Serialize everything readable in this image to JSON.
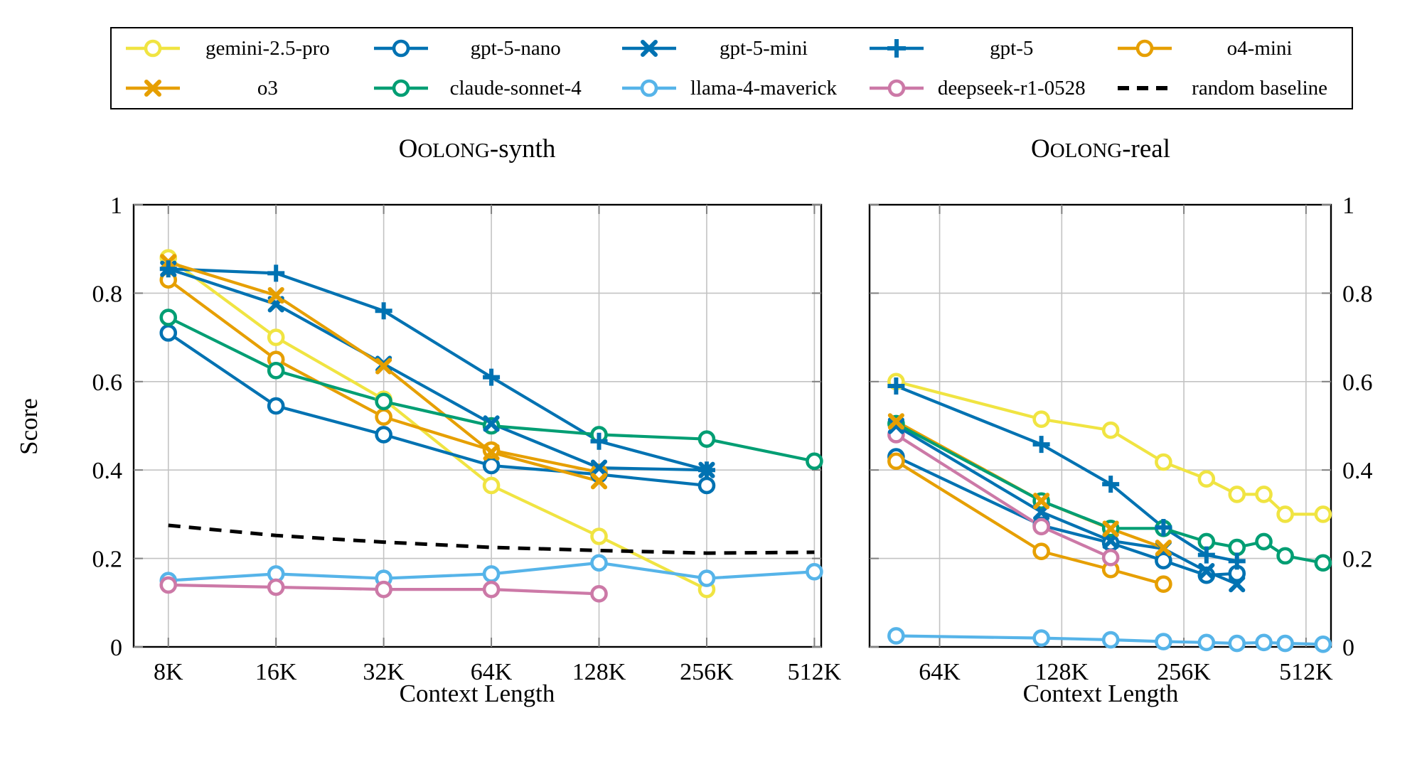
{
  "titles": {
    "left": {
      "lead": "O",
      "caps": "OLONG",
      "rest": "-synth"
    },
    "right": {
      "lead": "O",
      "caps": "OLONG",
      "rest": "-real"
    }
  },
  "axes": {
    "ylabel": "Score",
    "xlabel": "Context Length"
  },
  "colors": {
    "blue": "#0072B2",
    "orange": "#E69F00",
    "green": "#009E73",
    "sky": "#56B4E9",
    "pink": "#CC79A7",
    "yellow": "#F0E442",
    "black": "#000000"
  },
  "series_defs": {
    "gemini-2.5-pro": {
      "label": "gemini-2.5-pro",
      "color": "#F0E442",
      "marker": "circle",
      "dash": false
    },
    "gpt-5-nano": {
      "label": "gpt-5-nano",
      "color": "#0072B2",
      "marker": "circle",
      "dash": false
    },
    "gpt-5-mini": {
      "label": "gpt-5-mini",
      "color": "#0072B2",
      "marker": "x",
      "dash": false
    },
    "gpt-5": {
      "label": "gpt-5",
      "color": "#0072B2",
      "marker": "plus",
      "dash": false
    },
    "o4-mini": {
      "label": "o4-mini",
      "color": "#E69F00",
      "marker": "circle",
      "dash": false
    },
    "o3": {
      "label": "o3",
      "color": "#E69F00",
      "marker": "x",
      "dash": false
    },
    "claude-sonnet-4": {
      "label": "claude-sonnet-4",
      "color": "#009E73",
      "marker": "circle",
      "dash": false
    },
    "llama-4-maverick": {
      "label": "llama-4-maverick",
      "color": "#56B4E9",
      "marker": "circle",
      "dash": false
    },
    "deepseek-r1-0528": {
      "label": "deepseek-r1-0528",
      "color": "#CC79A7",
      "marker": "circle",
      "dash": false
    },
    "random-baseline": {
      "label": "random baseline",
      "color": "#000000",
      "marker": "none",
      "dash": true
    }
  },
  "legend": {
    "rows": [
      [
        "gemini-2.5-pro",
        "gpt-5-nano",
        "gpt-5-mini",
        "gpt-5",
        "o4-mini"
      ],
      [
        "o3",
        "claude-sonnet-4",
        "llama-4-maverick",
        "deepseek-r1-0528",
        "random-baseline"
      ]
    ]
  },
  "chart_data": [
    {
      "id": "synth",
      "type": "line",
      "title": "OOLONG-synth",
      "xlabel": "Context Length",
      "ylabel": "Score",
      "x_scale": "log2",
      "xlim_k": [
        6.4,
        535
      ],
      "ylim": [
        0,
        1
      ],
      "grid": true,
      "x_ticks": [
        {
          "value_k": 8,
          "label": "8K"
        },
        {
          "value_k": 16,
          "label": "16K"
        },
        {
          "value_k": 32,
          "label": "32K"
        },
        {
          "value_k": 64,
          "label": "64K"
        },
        {
          "value_k": 128,
          "label": "128K"
        },
        {
          "value_k": 256,
          "label": "256K"
        },
        {
          "value_k": 512,
          "label": "512K"
        }
      ],
      "y_ticks": [
        {
          "value": 0,
          "label": "0"
        },
        {
          "value": 0.2,
          "label": "0.2"
        },
        {
          "value": 0.4,
          "label": "0.4"
        },
        {
          "value": 0.6,
          "label": "0.6"
        },
        {
          "value": 0.8,
          "label": "0.8"
        },
        {
          "value": 1,
          "label": "1"
        }
      ],
      "series": [
        {
          "ref": "gemini-2.5-pro",
          "x_k": [
            8,
            16,
            32,
            64,
            128,
            256
          ],
          "y": [
            0.88,
            0.7,
            0.56,
            0.365,
            0.25,
            0.13
          ]
        },
        {
          "ref": "gpt-5-nano",
          "x_k": [
            8,
            16,
            32,
            64,
            128,
            256
          ],
          "y": [
            0.71,
            0.545,
            0.48,
            0.41,
            0.39,
            0.365
          ]
        },
        {
          "ref": "gpt-5-mini",
          "x_k": [
            8,
            16,
            32,
            64,
            128,
            256
          ],
          "y": [
            0.855,
            0.775,
            0.64,
            0.505,
            0.405,
            0.4
          ]
        },
        {
          "ref": "gpt-5",
          "x_k": [
            8,
            16,
            32,
            64,
            128,
            256
          ],
          "y": [
            0.855,
            0.845,
            0.76,
            0.61,
            0.465,
            0.4
          ]
        },
        {
          "ref": "o4-mini",
          "x_k": [
            8,
            16,
            32,
            64,
            128
          ],
          "y": [
            0.83,
            0.65,
            0.52,
            0.445,
            0.395
          ]
        },
        {
          "ref": "o3",
          "x_k": [
            8,
            16,
            32,
            64,
            128
          ],
          "y": [
            0.87,
            0.795,
            0.635,
            0.44,
            0.375
          ]
        },
        {
          "ref": "claude-sonnet-4",
          "x_k": [
            8,
            16,
            32,
            64,
            128,
            256,
            512
          ],
          "y": [
            0.745,
            0.625,
            0.555,
            0.5,
            0.48,
            0.47,
            0.42
          ]
        },
        {
          "ref": "llama-4-maverick",
          "x_k": [
            8,
            16,
            32,
            64,
            128,
            256,
            512
          ],
          "y": [
            0.15,
            0.165,
            0.155,
            0.165,
            0.19,
            0.155,
            0.17
          ]
        },
        {
          "ref": "deepseek-r1-0528",
          "x_k": [
            8,
            16,
            32,
            64,
            128
          ],
          "y": [
            0.14,
            0.135,
            0.13,
            0.13,
            0.12
          ]
        },
        {
          "ref": "random-baseline",
          "x_k": [
            8,
            16,
            32,
            64,
            128,
            256,
            512
          ],
          "y": [
            0.275,
            0.252,
            0.237,
            0.225,
            0.218,
            0.212,
            0.214
          ]
        }
      ]
    },
    {
      "id": "real",
      "type": "line",
      "title": "OOLONG-real",
      "xlabel": "Context Length",
      "ylabel": "",
      "x_scale": "log2",
      "xlim_k": [
        43,
        590
      ],
      "ylim": [
        0,
        1
      ],
      "grid": true,
      "x_ticks": [
        {
          "value_k": 64,
          "label": "64K"
        },
        {
          "value_k": 128,
          "label": "128K"
        },
        {
          "value_k": 256,
          "label": "256K"
        },
        {
          "value_k": 512,
          "label": "512K"
        }
      ],
      "y_ticks": [
        {
          "value": 0,
          "label": "0"
        },
        {
          "value": 0.2,
          "label": "0.2"
        },
        {
          "value": 0.4,
          "label": "0.4"
        },
        {
          "value": 0.6,
          "label": "0.6"
        },
        {
          "value": 0.8,
          "label": "0.8"
        },
        {
          "value": 1,
          "label": "1"
        }
      ],
      "series": [
        {
          "ref": "gemini-2.5-pro",
          "x_k": [
            50,
            114,
            169,
            228,
            291,
            346,
            403,
            455,
            564
          ],
          "y": [
            0.6,
            0.515,
            0.49,
            0.418,
            0.38,
            0.345,
            0.345,
            0.3,
            0.3
          ]
        },
        {
          "ref": "gpt-5-nano",
          "x_k": [
            50,
            114,
            169,
            228,
            291,
            346
          ],
          "y": [
            0.43,
            0.275,
            0.235,
            0.195,
            0.162,
            0.166
          ]
        },
        {
          "ref": "gpt-5-mini",
          "x_k": [
            50,
            114,
            169,
            228,
            291,
            346
          ],
          "y": [
            0.5,
            0.305,
            0.24,
            0.222,
            0.171,
            0.142
          ]
        },
        {
          "ref": "gpt-5",
          "x_k": [
            50,
            114,
            169,
            228,
            291,
            346
          ],
          "y": [
            0.59,
            0.458,
            0.368,
            0.27,
            0.208,
            0.194
          ]
        },
        {
          "ref": "o4-mini",
          "x_k": [
            50,
            114,
            169,
            228
          ],
          "y": [
            0.42,
            0.216,
            0.175,
            0.142
          ]
        },
        {
          "ref": "o3",
          "x_k": [
            50,
            114,
            169,
            228
          ],
          "y": [
            0.51,
            0.33,
            0.267,
            0.224
          ]
        },
        {
          "ref": "claude-sonnet-4",
          "x_k": [
            50,
            114,
            169,
            228,
            291,
            346,
            403,
            455,
            564
          ],
          "y": [
            0.505,
            0.33,
            0.268,
            0.268,
            0.238,
            0.225,
            0.238,
            0.206,
            0.19
          ]
        },
        {
          "ref": "llama-4-maverick",
          "x_k": [
            50,
            114,
            169,
            228,
            291,
            346,
            403,
            455,
            564
          ],
          "y": [
            0.025,
            0.02,
            0.016,
            0.012,
            0.01,
            0.008,
            0.01,
            0.008,
            0.006
          ]
        },
        {
          "ref": "deepseek-r1-0528",
          "x_k": [
            50,
            114,
            169
          ],
          "y": [
            0.48,
            0.272,
            0.202
          ]
        }
      ]
    }
  ]
}
